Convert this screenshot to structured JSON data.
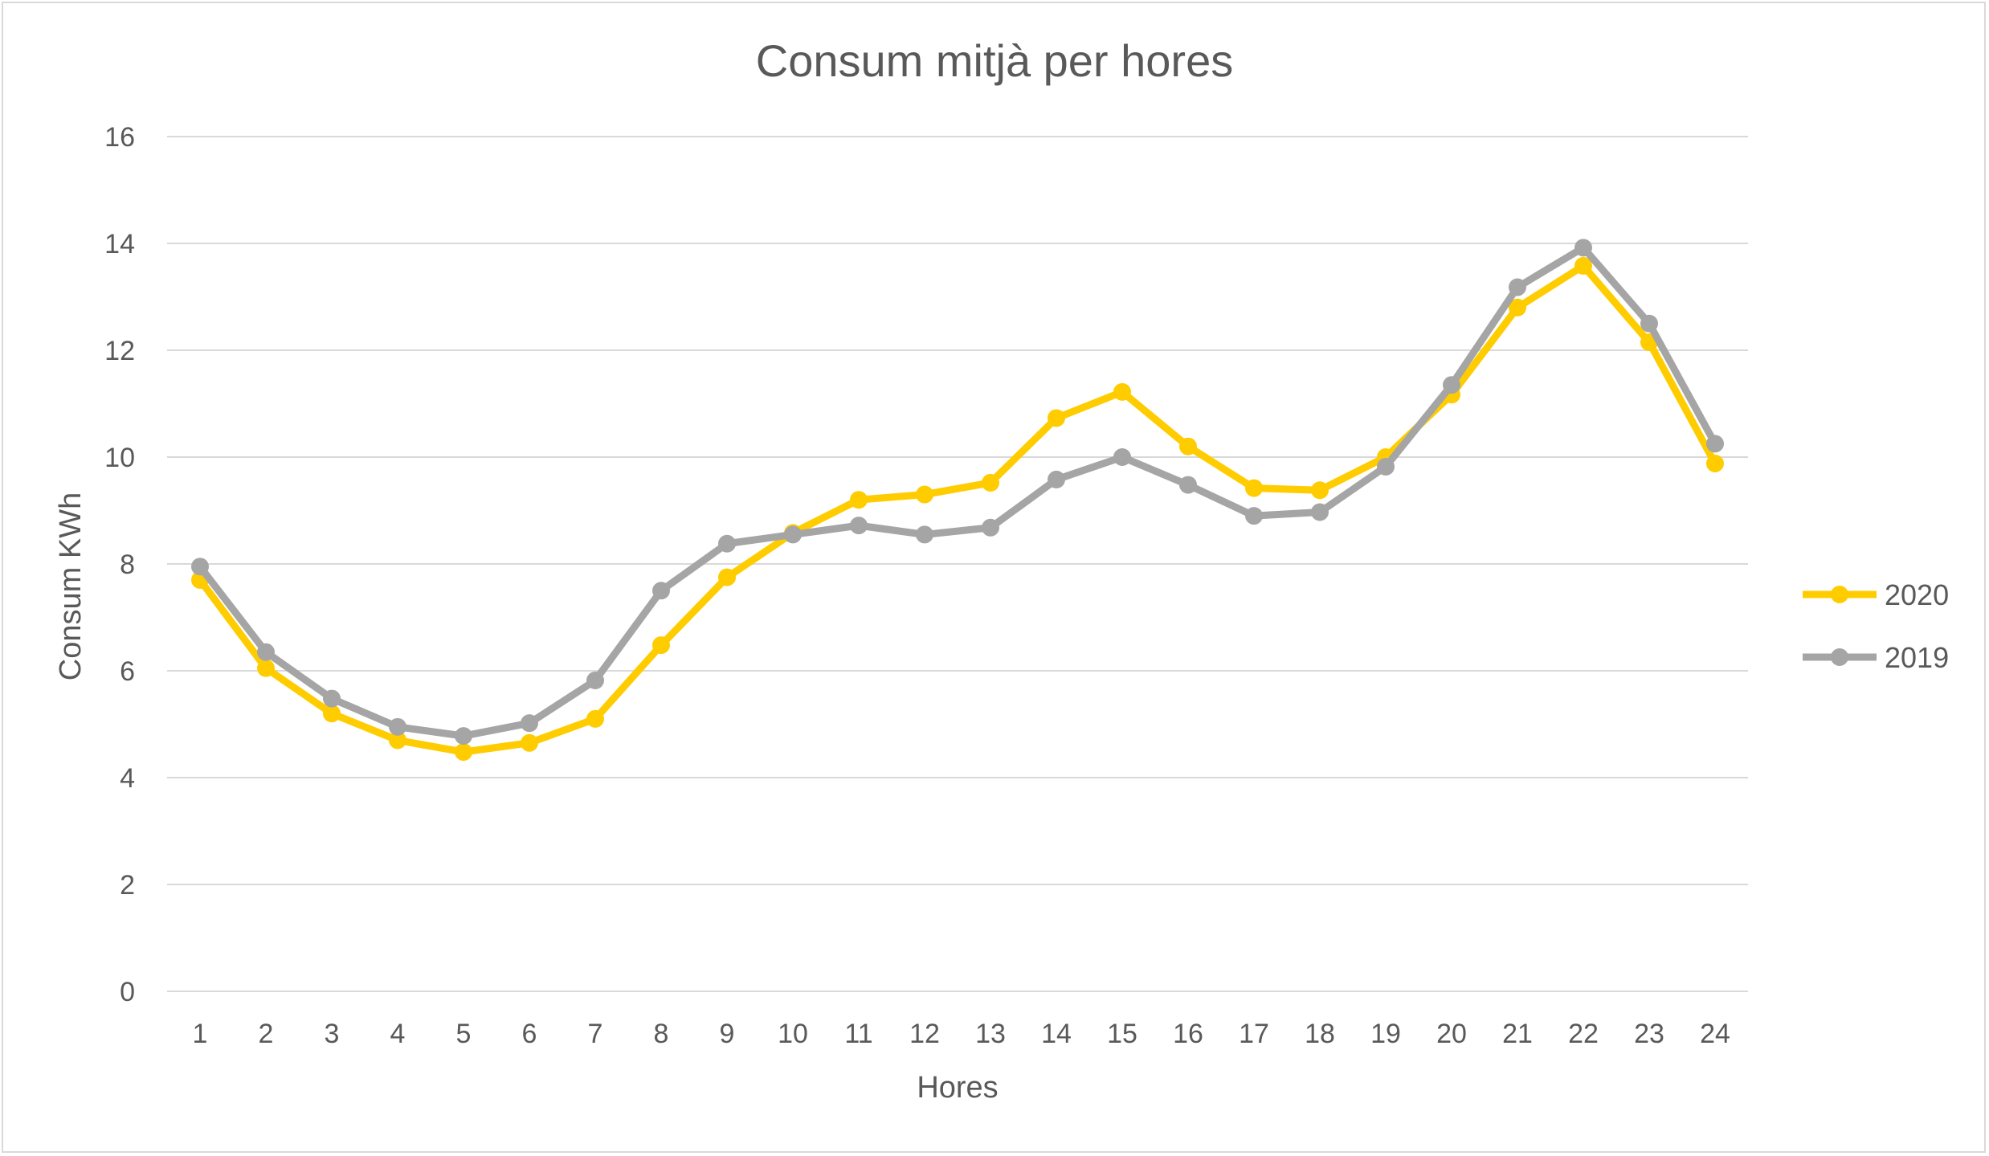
{
  "chart_data": {
    "type": "line",
    "title": "Consum mitjà per hores",
    "xlabel": "Hores",
    "ylabel": "Consum KWh",
    "categories": [
      "1",
      "2",
      "3",
      "4",
      "5",
      "6",
      "7",
      "8",
      "9",
      "10",
      "11",
      "12",
      "13",
      "14",
      "15",
      "16",
      "17",
      "18",
      "19",
      "20",
      "21",
      "22",
      "23",
      "24"
    ],
    "ylim": [
      0,
      16
    ],
    "yticks": [
      "0",
      "2",
      "4",
      "6",
      "8",
      "10",
      "12",
      "14",
      "16"
    ],
    "grid": "horizontal",
    "legend_position": "right",
    "series": [
      {
        "name": "2020",
        "color": "#FFCC00",
        "values": [
          7.7,
          6.05,
          5.2,
          4.7,
          4.48,
          4.65,
          5.1,
          6.48,
          7.75,
          8.58,
          9.2,
          9.3,
          9.52,
          10.73,
          11.22,
          10.2,
          9.42,
          9.38,
          10.0,
          11.17,
          12.8,
          13.58,
          12.15,
          9.88
        ]
      },
      {
        "name": "2019",
        "color": "#A5A5A5",
        "values": [
          7.95,
          6.35,
          5.48,
          4.95,
          4.78,
          5.02,
          5.82,
          7.5,
          8.38,
          8.55,
          8.72,
          8.55,
          8.68,
          9.58,
          10.0,
          9.48,
          8.9,
          8.97,
          9.82,
          11.35,
          13.18,
          13.92,
          12.5,
          10.25
        ]
      }
    ]
  }
}
